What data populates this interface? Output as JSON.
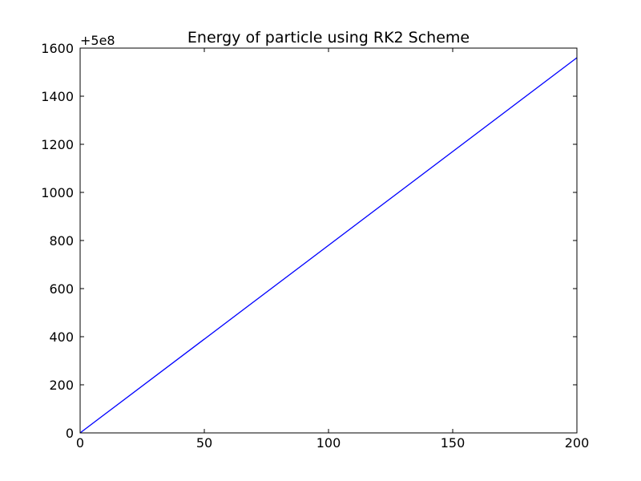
{
  "chart_data": {
    "type": "line",
    "title": "Energy of particle using RK2 Scheme",
    "xlabel": "",
    "ylabel": "",
    "y_offset_label": "+5e8",
    "xlim": [
      0,
      200
    ],
    "ylim": [
      0,
      1600
    ],
    "x_ticks": [
      "0",
      "50",
      "100",
      "150",
      "200"
    ],
    "y_ticks": [
      "0",
      "200",
      "400",
      "600",
      "800",
      "1000",
      "1200",
      "1400",
      "1600"
    ],
    "grid": false,
    "legend": "none",
    "series": [
      {
        "color": "#0000ff",
        "x": [
          0,
          200
        ],
        "y": [
          0,
          1560
        ]
      }
    ]
  }
}
